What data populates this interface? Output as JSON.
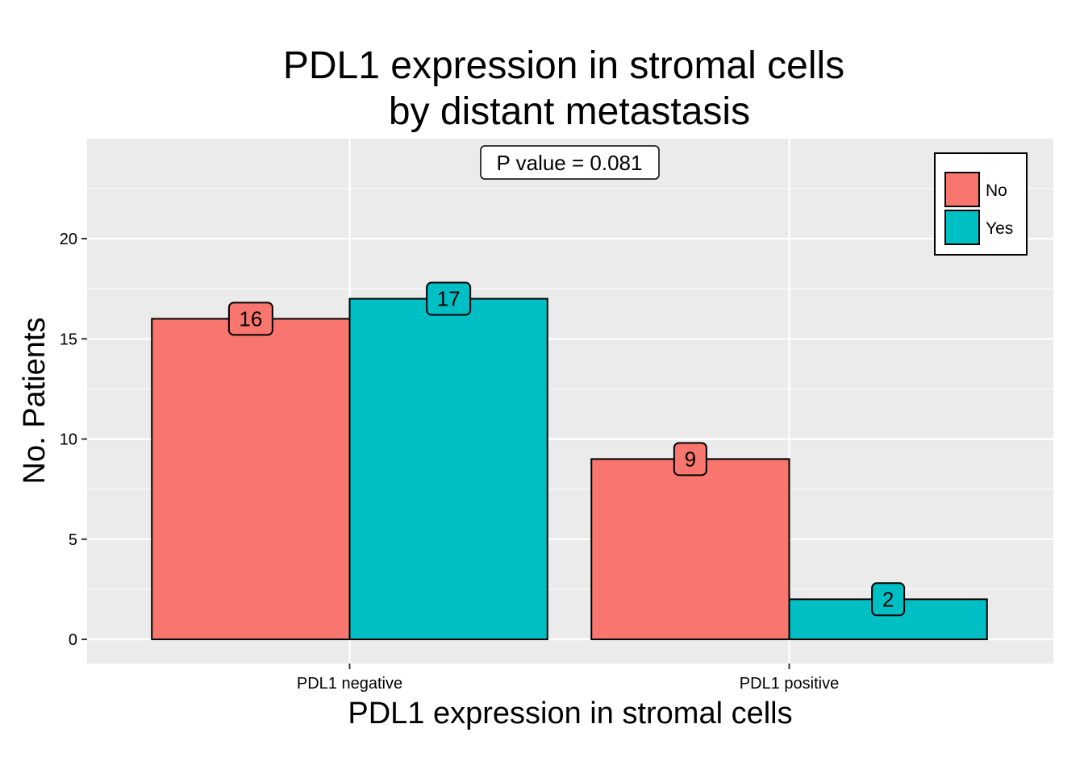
{
  "chart_data": {
    "type": "bar",
    "title_lines": [
      "PDL1 expression in stromal cells",
      "by distant metastasis"
    ],
    "xlabel": "PDL1 expression in stromal cells",
    "ylabel": "No. Patients",
    "categories": [
      "PDL1 negative",
      "PDL1 positive"
    ],
    "series": [
      {
        "name": "No",
        "color": "#F8766D",
        "values": [
          16,
          9
        ]
      },
      {
        "name": "Yes",
        "color": "#00BFC4",
        "values": [
          17,
          2
        ]
      }
    ],
    "ylim": [
      -1.2,
      25
    ],
    "yticks": [
      0,
      5,
      10,
      15,
      20
    ],
    "annotation": "P value = 0.081",
    "legend_position": "top-right",
    "grid": true,
    "panel_background": "#EBEBEB",
    "grid_color": "#FFFFFF"
  }
}
